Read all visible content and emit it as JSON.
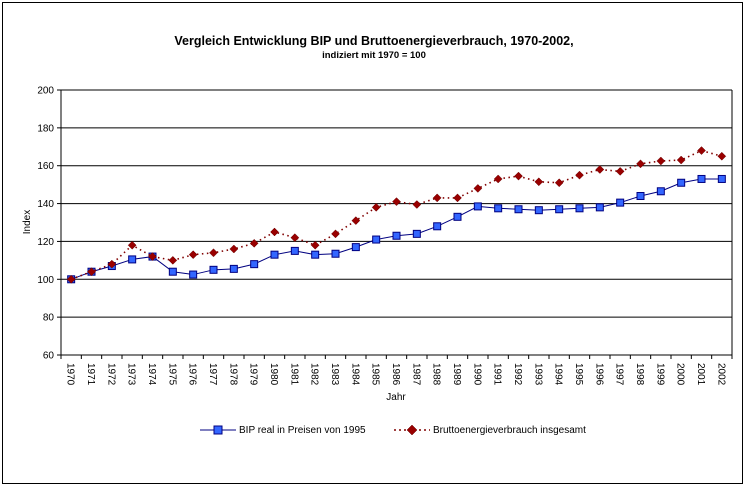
{
  "chart_data": {
    "type": "line",
    "title": "Vergleich Entwicklung BIP und Bruttoenergieverbrauch, 1970-2002,",
    "subtitle": "indiziert mit 1970 = 100",
    "xlabel": "Jahr",
    "ylabel": "Index",
    "ylim": [
      60,
      200
    ],
    "yticks": [
      60,
      80,
      100,
      120,
      140,
      160,
      180,
      200
    ],
    "grid": true,
    "legend_position": "bottom",
    "categories": [
      "1970",
      "1971",
      "1972",
      "1973",
      "1974",
      "1975",
      "1976",
      "1977",
      "1978",
      "1979",
      "1980",
      "1981",
      "1982",
      "1983",
      "1984",
      "1985",
      "1986",
      "1987",
      "1988",
      "1989",
      "1990",
      "1991",
      "1992",
      "1993",
      "1994",
      "1995",
      "1996",
      "1997",
      "1998",
      "1999",
      "2000",
      "2001",
      "2002"
    ],
    "series": [
      {
        "name": "BIP real in Preisen von 1995",
        "color": "#3366FF",
        "line_color": "#000080",
        "marker": "square",
        "line_style": "solid",
        "values": [
          100,
          104,
          107,
          110.5,
          112,
          104,
          102.5,
          105,
          105.5,
          108,
          113,
          115,
          113,
          113.5,
          117,
          121,
          123,
          124,
          128,
          133,
          138.5,
          137.5,
          137,
          136.5,
          137,
          137.5,
          138,
          140.5,
          144,
          146.5,
          151,
          153,
          153
        ]
      },
      {
        "name": "Bruttoenergieverbrauch insgesamt",
        "color": "#990000",
        "line_color": "#800000",
        "marker": "diamond",
        "line_style": "dotted",
        "values": [
          100,
          104,
          108,
          118,
          112,
          110,
          113,
          114,
          116,
          119,
          125,
          122,
          118,
          124,
          131,
          138,
          141,
          139.5,
          143,
          143,
          148,
          153,
          154.5,
          151.5,
          151,
          155,
          158,
          157,
          161,
          162.5,
          163,
          168,
          165
        ]
      }
    ]
  }
}
